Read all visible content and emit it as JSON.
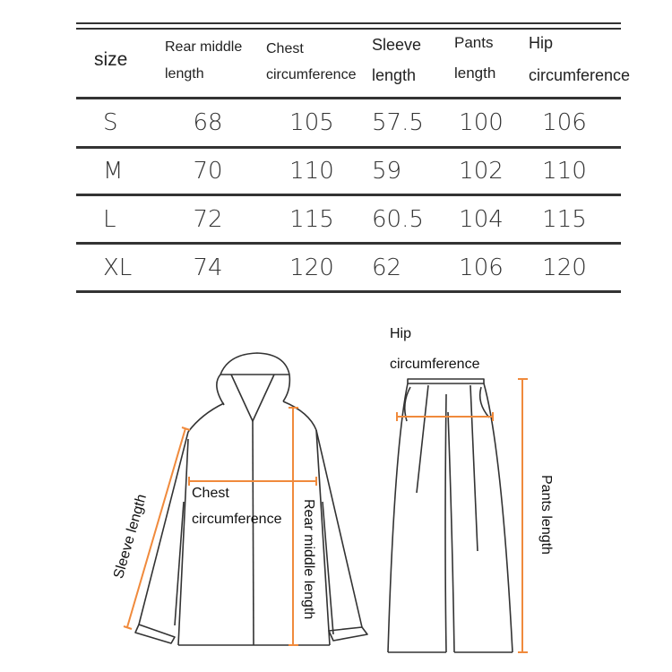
{
  "table": {
    "headers": [
      {
        "line1": "size",
        "line2": ""
      },
      {
        "line1": "Rear middle",
        "line2": "length"
      },
      {
        "line1": "Chest",
        "line2": "circumference"
      },
      {
        "line1": "Sleeve",
        "line2": "length"
      },
      {
        "line1": "Pants",
        "line2": "length"
      },
      {
        "line1": "Hip",
        "line2": "circumference"
      }
    ],
    "rows": [
      [
        "S",
        "68",
        "105",
        "57.5",
        "100",
        "106"
      ],
      [
        "M",
        "70",
        "110",
        "59",
        "102",
        "110"
      ],
      [
        "L",
        "72",
        "115",
        "60.5",
        "104",
        "115"
      ],
      [
        "XL",
        "74",
        "120",
        "62",
        "106",
        "120"
      ]
    ]
  },
  "diagram": {
    "jacket_labels": {
      "sleeve": "Sleeve length",
      "chest_line1": "Chest",
      "chest_line2": "circumference",
      "rear": "Rear middle length"
    },
    "pants_labels": {
      "hip_line1": "Hip",
      "hip_line2": "circumference",
      "pants": "Pants length"
    },
    "measure_color": "#f08a3c",
    "outline_color": "#333333"
  }
}
